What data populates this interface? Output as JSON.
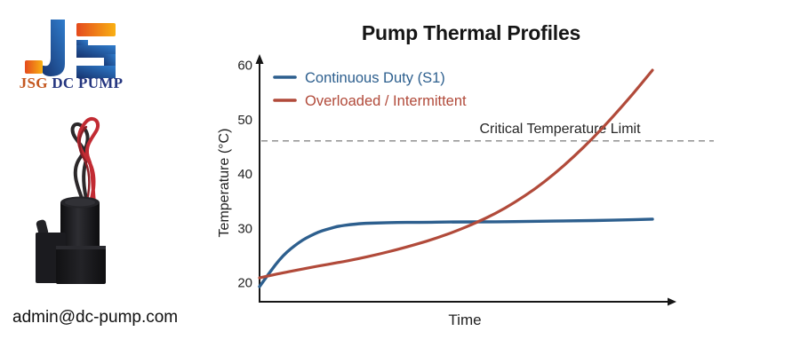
{
  "brand": {
    "name_primary": "JSG",
    "name_secondary": "DC PUMP",
    "email": "admin@dc-pump.com",
    "colors": {
      "orange": "#c4571f",
      "navy": "#24357f"
    }
  },
  "chart_data": {
    "type": "line",
    "title": "Pump Thermal Profiles",
    "xlabel": "Time",
    "ylabel": "Temperature (°C)",
    "x_range": [
      0,
      100
    ],
    "ylim": [
      16,
      62
    ],
    "yticks": [
      20,
      30,
      40,
      50,
      60
    ],
    "grid": false,
    "legend_position": "top-left",
    "annotation": {
      "label": "Critical Temperature Limit",
      "value": 46
    },
    "series": [
      {
        "name": "Continuous Duty (S1)",
        "color": "#2d5f8e",
        "points": [
          [
            0,
            19.2
          ],
          [
            2,
            21.2
          ],
          [
            4,
            23.2
          ],
          [
            6,
            24.9
          ],
          [
            8,
            26.2
          ],
          [
            10,
            27.3
          ],
          [
            12,
            28.2
          ],
          [
            14,
            28.9
          ],
          [
            16,
            29.5
          ],
          [
            18,
            29.9
          ],
          [
            20,
            30.3
          ],
          [
            23,
            30.6
          ],
          [
            26,
            30.8
          ],
          [
            30,
            30.9
          ],
          [
            35,
            31.0
          ],
          [
            40,
            31.0
          ],
          [
            50,
            31.1
          ],
          [
            60,
            31.1
          ],
          [
            70,
            31.2
          ],
          [
            80,
            31.3
          ],
          [
            90,
            31.4
          ],
          [
            100,
            31.6
          ]
        ]
      },
      {
        "name": "Overloaded / Intermittent",
        "color": "#b14a3a",
        "points": [
          [
            0,
            20.8
          ],
          [
            5,
            21.6
          ],
          [
            10,
            22.3
          ],
          [
            15,
            23.0
          ],
          [
            20,
            23.6
          ],
          [
            25,
            24.3
          ],
          [
            30,
            25.1
          ],
          [
            35,
            26.0
          ],
          [
            40,
            27.0
          ],
          [
            45,
            28.1
          ],
          [
            50,
            29.4
          ],
          [
            55,
            30.9
          ],
          [
            60,
            32.6
          ],
          [
            65,
            34.7
          ],
          [
            70,
            37.1
          ],
          [
            75,
            39.9
          ],
          [
            80,
            43.1
          ],
          [
            85,
            46.6
          ],
          [
            90,
            50.5
          ],
          [
            95,
            54.6
          ],
          [
            100,
            59.0
          ]
        ]
      }
    ]
  }
}
